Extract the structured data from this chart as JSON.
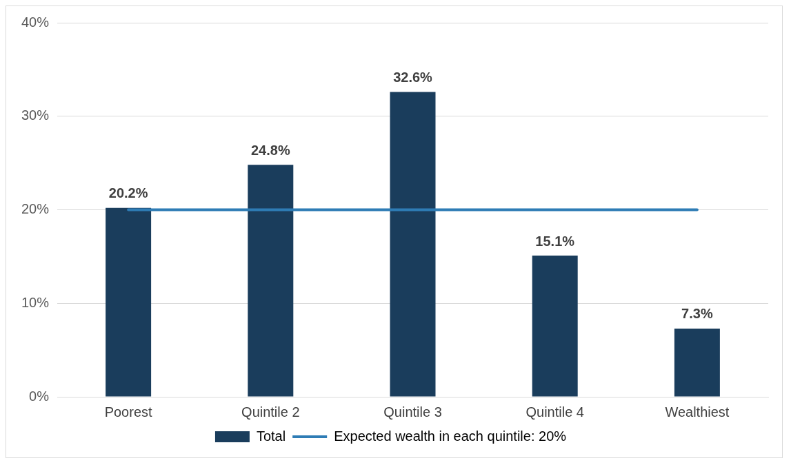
{
  "chart_data": {
    "type": "bar",
    "categories": [
      "Poorest",
      "Quintile 2",
      "Quintile 3",
      "Quintile 4",
      "Wealthiest"
    ],
    "series": [
      {
        "name": "Total",
        "color": "#1a3d5c",
        "values": [
          20.2,
          24.8,
          32.6,
          15.1,
          7.3
        ],
        "value_labels": [
          "20.2%",
          "24.8%",
          "32.6%",
          "15.1%",
          "7.3%"
        ]
      },
      {
        "name": "Expected wealth in each quintile: 20%",
        "type": "line",
        "color": "#2e7cb5",
        "values": [
          20,
          20,
          20,
          20,
          20
        ]
      }
    ],
    "ylim": [
      0,
      40
    ],
    "yticks": [
      {
        "value": 0,
        "label": "0%"
      },
      {
        "value": 10,
        "label": "10%"
      },
      {
        "value": 20,
        "label": "20%"
      },
      {
        "value": 30,
        "label": "30%"
      },
      {
        "value": 40,
        "label": "40%"
      }
    ],
    "grid": "y",
    "legend": "bottom",
    "marker": "none",
    "line_style": "solid"
  }
}
